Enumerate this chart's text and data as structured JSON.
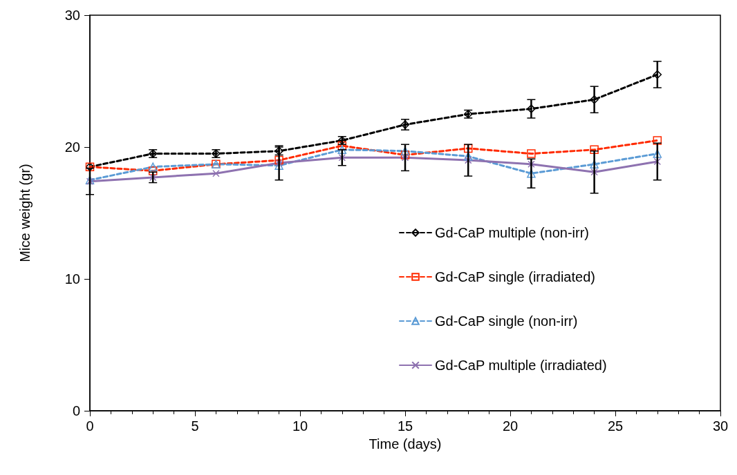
{
  "chart_data": {
    "type": "line",
    "xlabel": "Time (days)",
    "ylabel": "Mice weight (gr)",
    "x": [
      0,
      3,
      6,
      9,
      12,
      15,
      18,
      21,
      24,
      27
    ],
    "xlim": [
      0,
      30
    ],
    "xticks": [
      0,
      5,
      10,
      15,
      20,
      25,
      30
    ],
    "ylim": [
      0,
      30
    ],
    "yticks": [
      0,
      10,
      20,
      30
    ],
    "grid": false,
    "legend": "right",
    "series": [
      {
        "name": "Gd-CaP multiple (non-irr)",
        "color": "#000000",
        "marker": "diamond",
        "line_style": "dashed",
        "values": [
          18.5,
          19.5,
          19.5,
          19.7,
          20.5,
          21.7,
          22.5,
          22.9,
          23.6,
          25.5
        ],
        "errors": [
          null,
          0.3,
          0.3,
          0.3,
          0.3,
          0.4,
          0.3,
          0.7,
          1.0,
          1.0
        ]
      },
      {
        "name": "Gd-CaP single (irradiated)",
        "color": "#ff2a00",
        "marker": "square",
        "line_style": "dashed",
        "values": [
          18.5,
          18.2,
          18.7,
          19.0,
          20.1,
          19.4,
          19.9,
          19.5,
          19.8,
          20.5
        ]
      },
      {
        "name": "Gd-CaP single (non-irr)",
        "color": "#5b9bd5",
        "marker": "triangle",
        "line_style": "dashed",
        "values": [
          17.5,
          18.5,
          18.7,
          18.6,
          19.8,
          19.7,
          19.3,
          18.0,
          18.7,
          19.5
        ],
        "errors": [
          null,
          null,
          null,
          null,
          null,
          null,
          null,
          1.1,
          null,
          null
        ]
      },
      {
        "name": "Gd-CaP multiple (irradiated)",
        "color": "#8e72b0",
        "marker": "cross",
        "line_style": "solid",
        "values": [
          17.4,
          17.7,
          18.0,
          18.8,
          19.2,
          19.2,
          19.0,
          18.7,
          18.1,
          18.9
        ],
        "errors": [
          1.0,
          0.4,
          null,
          1.3,
          0.6,
          1.0,
          1.2,
          null,
          1.6,
          1.4
        ]
      }
    ]
  }
}
